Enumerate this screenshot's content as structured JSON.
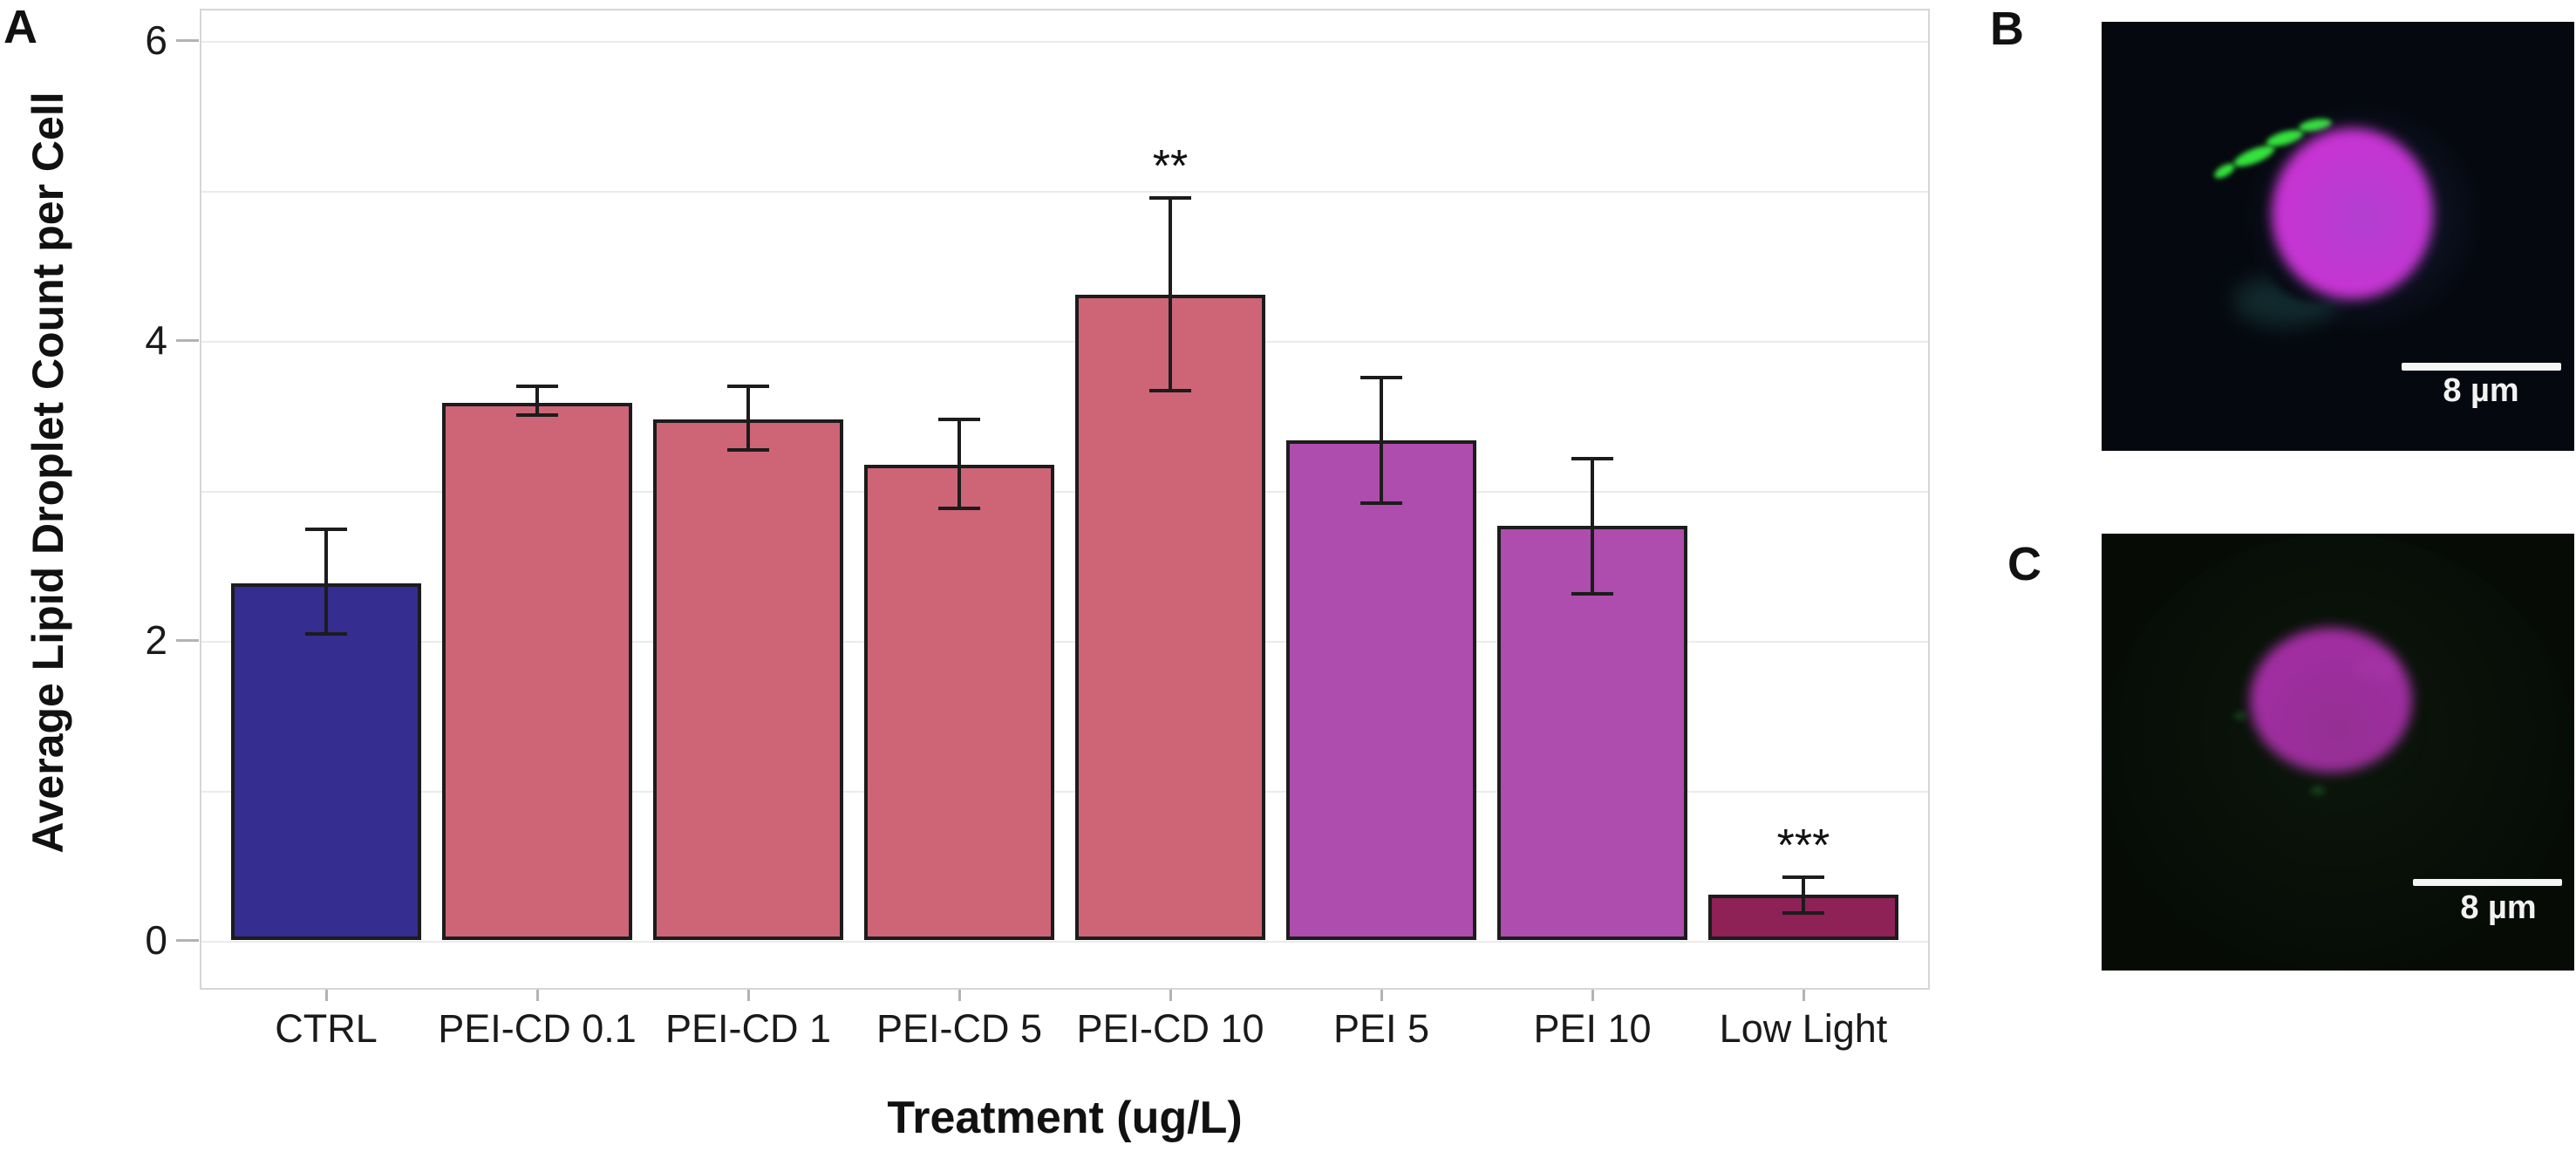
{
  "figure": {
    "panel_a_label": "A",
    "panel_b_label": "B",
    "panel_c_label": "C"
  },
  "chart_data": {
    "type": "bar",
    "title": "",
    "ylabel": "Average Lipid Droplet Count per Cell",
    "xlabel": "Treatment (ug/L)",
    "ylim": [
      0,
      6
    ],
    "yticks": [
      0,
      2,
      4,
      6
    ],
    "gridline_values": [
      0,
      1,
      2,
      3,
      4,
      5,
      6
    ],
    "grid_on": true,
    "legend": "none",
    "categories": [
      "CTRL",
      "PEI-CD 0.1",
      "PEI-CD 1",
      "PEI-CD 5",
      "PEI-CD 10",
      "PEI 5",
      "PEI 10",
      "Low Light"
    ],
    "values": [
      2.38,
      3.58,
      3.47,
      3.17,
      4.3,
      3.33,
      2.76,
      0.3
    ],
    "error_low": [
      2.04,
      3.5,
      3.27,
      2.88,
      3.66,
      2.91,
      2.31,
      0.18
    ],
    "error_high": [
      2.74,
      3.69,
      3.69,
      3.47,
      4.95,
      3.75,
      3.21,
      0.42
    ],
    "significance": [
      "",
      "",
      "",
      "",
      "**",
      "",
      "",
      "***"
    ],
    "bar_colors": [
      "#352D90",
      "#CD6577",
      "#CD6577",
      "#CD6577",
      "#CD6577",
      "#AE4DAD",
      "#AE4DAD",
      "#8E2156"
    ],
    "bar_outline_color": "#1c1c1c",
    "error_bar_color": "#1c1c1c"
  },
  "micrographs": {
    "b": {
      "label": "B",
      "scale_bar_label": "8 µm",
      "background_color": "#05080f",
      "cell_color": "#d02fd4",
      "droplet_color": "#35e23c"
    },
    "c": {
      "label": "C",
      "scale_bar_label": "8 µm",
      "background_color": "#060b06",
      "cell_color": "#cb2ecb"
    }
  }
}
